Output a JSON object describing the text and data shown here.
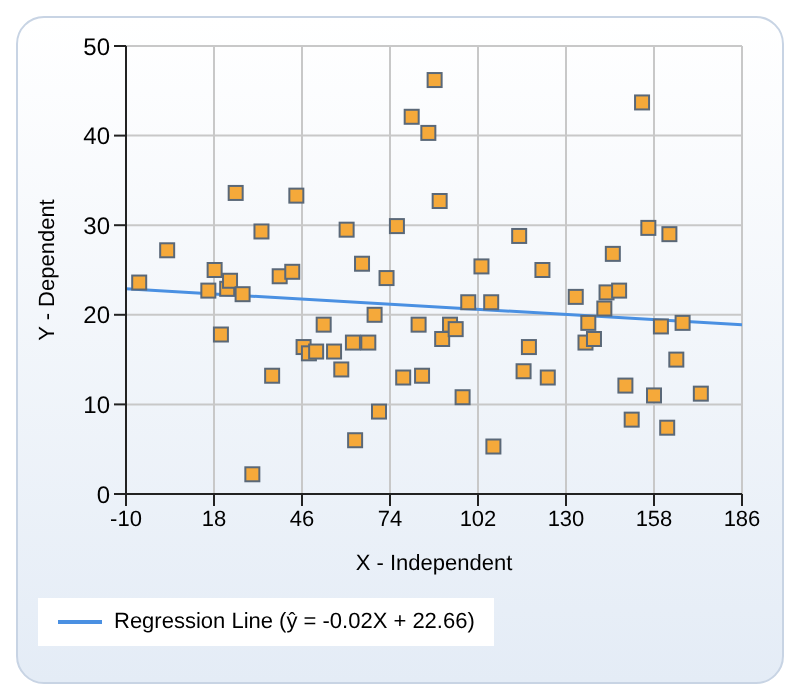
{
  "chart_data": {
    "type": "scatter",
    "xlabel": "X - Independent",
    "ylabel": "Y - Dependent",
    "xlim": [
      -10,
      186
    ],
    "xticks": [
      -10,
      18,
      46,
      74,
      102,
      130,
      158,
      186
    ],
    "ylim": [
      0,
      50
    ],
    "yticks": [
      0,
      10,
      20,
      30,
      40,
      50
    ],
    "grid": true,
    "legend": "bottom",
    "series": [
      {
        "marker": "square",
        "color": "#f5a93a",
        "x": [
          -5.8,
          3.1,
          18.2,
          16.2,
          22.2,
          23.1,
          27.1,
          20.2,
          24.9,
          33.1,
          30.2,
          36.5,
          38.9,
          42.9,
          44.2,
          46.5,
          48.2,
          50.5,
          52.9,
          56.2,
          58.5,
          60.2,
          62.2,
          62.9,
          65.1,
          67.1,
          69.1,
          70.5,
          72.9,
          76.2,
          78.2,
          80.9,
          83.1,
          84.2,
          86.2,
          88.2,
          89.8,
          90.6,
          93.1,
          94.9,
          98.9,
          106.2,
          103.1,
          97.1,
          106.9,
          115.1,
          118.2,
          116.5,
          122.5,
          124.2,
          133.1,
          137.1,
          136.2,
          138.9,
          142.9,
          142.2,
          144.9,
          146.9,
          148.9,
          150.9,
          154.2,
          156.2,
          158.0,
          160.2,
          162.9,
          162.2,
          165.1,
          167.1,
          172.9
        ],
        "values": [
          23.6,
          27.2,
          25.0,
          22.7,
          22.9,
          23.8,
          22.3,
          17.8,
          33.6,
          29.3,
          2.2,
          13.2,
          24.3,
          24.8,
          33.3,
          16.4,
          15.7,
          15.9,
          18.9,
          15.9,
          13.9,
          29.5,
          16.9,
          6.0,
          25.7,
          16.9,
          20.0,
          9.2,
          24.1,
          29.9,
          13.0,
          42.1,
          18.9,
          13.2,
          40.3,
          46.2,
          32.7,
          17.3,
          18.9,
          18.4,
          21.4,
          21.4,
          25.4,
          10.8,
          5.3,
          28.8,
          16.4,
          13.7,
          25.0,
          13.0,
          22.0,
          19.1,
          16.9,
          17.3,
          22.5,
          20.7,
          26.8,
          22.7,
          12.1,
          8.3,
          43.7,
          29.7,
          11.0,
          18.7,
          29.0,
          7.4,
          15.0,
          19.1,
          11.2
        ]
      },
      {
        "type": "line",
        "name": "Regression Line (ŷ = -0.02X + 22.66)",
        "marker": "none",
        "color": "#4a90e2",
        "x": [
          -10,
          186
        ],
        "values": [
          22.9,
          18.9
        ]
      }
    ]
  }
}
